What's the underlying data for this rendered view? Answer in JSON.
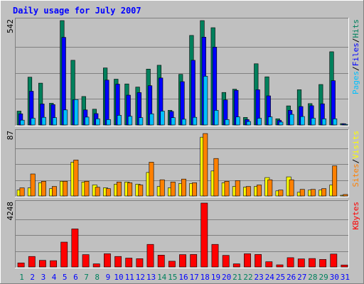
{
  "colors": {
    "background": "#c0c0c0",
    "plot_background": "#c0c0c0",
    "gridline": "#808080",
    "title": "#0000ff",
    "hits": "#00805c",
    "files": "#0000ff",
    "pages": "#00c0ff",
    "visits": "#ffff00",
    "sites": "#ff8000",
    "kbytes": "#ff0000",
    "weekend_label": "#00805c",
    "weekday_label": "#0000ff"
  },
  "chart_data": {
    "type": "bar",
    "title": "Daily usage for July 2007",
    "categories": [
      "1",
      "2",
      "3",
      "4",
      "5",
      "6",
      "7",
      "8",
      "9",
      "10",
      "11",
      "12",
      "13",
      "14",
      "15",
      "16",
      "17",
      "18",
      "19",
      "20",
      "21",
      "22",
      "23",
      "24",
      "25",
      "26",
      "27",
      "28",
      "29",
      "30",
      "31"
    ],
    "weekend_days": [
      "1",
      "7",
      "8",
      "14",
      "15",
      "21",
      "22",
      "28",
      "29"
    ],
    "panels": [
      {
        "name": "hits-files-pages",
        "ymax_label": "542",
        "ylim": [
          0,
          542
        ],
        "legend": [
          {
            "text": "Hits",
            "color": "#00805c"
          },
          {
            "text": "/",
            "color": "#000000"
          },
          {
            "text": "Files",
            "color": "#0000ff"
          },
          {
            "text": "/",
            "color": "#000000"
          },
          {
            "text": "Pages",
            "color": "#00c0ff"
          }
        ],
        "series": [
          {
            "name": "Hits",
            "color": "#00805c",
            "values": [
              72,
              248,
              217,
              113,
              542,
              336,
              148,
              82,
              296,
              238,
              213,
              197,
              290,
              310,
              76,
              263,
              465,
              542,
              505,
              169,
              186,
              39,
              318,
              250,
              32,
              99,
              183,
              111,
              210,
              380,
              7
            ]
          },
          {
            "name": "Files",
            "color": "#0000ff",
            "values": [
              58,
              175,
              109,
              106,
              455,
              131,
              78,
              59,
              233,
              212,
              155,
              168,
              204,
              244,
              70,
              225,
              336,
              456,
              404,
              130,
              180,
              28,
              183,
              151,
              24,
              76,
              96,
              100,
              110,
              230,
              6
            ]
          },
          {
            "name": "Pages",
            "color": "#00c0ff",
            "values": [
              25,
              35,
              40,
              38,
              78,
              132,
              41,
              32,
              28,
              50,
              45,
              38,
              58,
              72,
              38,
              30,
              40,
              253,
              76,
              28,
              42,
              18,
              35,
              42,
              15,
              55,
              44,
              35,
              32,
              32,
              3
            ]
          }
        ]
      },
      {
        "name": "visits-sites",
        "ymax_label": "87",
        "ylim": [
          0,
          87
        ],
        "legend": [
          {
            "text": "Visits",
            "color": "#ffff00"
          },
          {
            "text": "/",
            "color": "#000000"
          },
          {
            "text": "Sites",
            "color": "#ff8000"
          }
        ],
        "series": [
          {
            "name": "Visits",
            "color": "#ffff00",
            "values": [
              8,
              11,
              18,
              10,
              20,
              46,
              19,
              15,
              11,
              16,
              19,
              16,
              32,
              13,
              11,
              17,
              17,
              80,
              34,
              18,
              13,
              12,
              13,
              25,
              7,
              26,
              5,
              8,
              8,
              15,
              1
            ]
          },
          {
            "name": "Sites",
            "color": "#ff8000",
            "values": [
              11,
              30,
              20,
              13,
              20,
              49,
              20,
              12,
              10,
              19,
              18,
              15,
              46,
              22,
              19,
              23,
              18,
              85,
              51,
              20,
              21,
              13,
              15,
              22,
              8,
              22,
              9,
              9,
              10,
              41,
              2
            ]
          }
        ]
      },
      {
        "name": "kbytes",
        "ymax_label": "4248",
        "ylim": [
          0,
          4248
        ],
        "legend": [
          {
            "text": "KBytes",
            "color": "#ff0000"
          }
        ],
        "series": [
          {
            "name": "KBytes",
            "color": "#ff0000",
            "values": [
              270,
              700,
              440,
              420,
              1650,
              2530,
              820,
              210,
              880,
              700,
              590,
              550,
              1500,
              790,
              380,
              820,
              830,
              4248,
              1500,
              770,
              210,
              880,
              830,
              350,
              140,
              620,
              540,
              560,
              500,
              860,
              130
            ]
          }
        ]
      }
    ]
  }
}
